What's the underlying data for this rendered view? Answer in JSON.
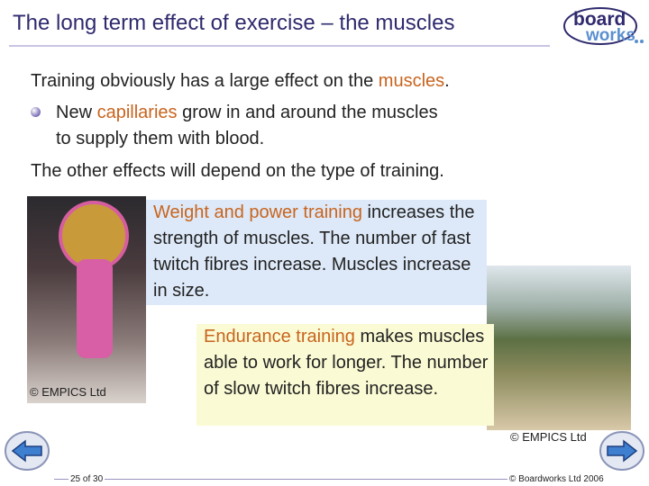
{
  "header": {
    "title": "The long term effect of exercise – the muscles",
    "logo": [
      "board",
      "works"
    ]
  },
  "body": {
    "intro": [
      "Training obviously has a large effect on the ",
      "muscles",
      "."
    ],
    "bullet": [
      "New ",
      "capillaries",
      " grow in and around the muscles to supply them with blood."
    ],
    "other": "The other effects will depend on the type of training."
  },
  "boxes": [
    {
      "heading": "Weight and power training",
      "text": " increases the strength of muscles. The number of fast twitch fibres increase. Muscles increase in size."
    },
    {
      "heading": "Endurance training",
      "text": " makes muscles able to work for longer. The number of slow twitch fibres increase."
    }
  ],
  "photos": [
    {
      "credit": "© EMPICS Ltd"
    },
    {
      "credit": "© EMPICS Ltd"
    }
  ],
  "footer": {
    "page": "25 of 30",
    "copyright": "© Boardworks Ltd 2006"
  }
}
